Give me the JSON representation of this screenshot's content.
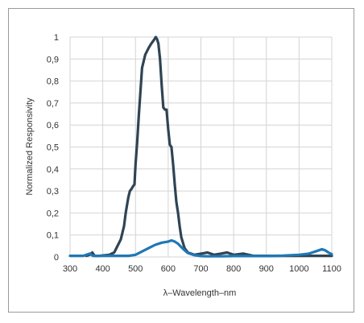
{
  "chart_data": {
    "type": "line",
    "title": "",
    "xlabel": "λ–Wavelength–nm",
    "ylabel": "Normalized Responsivity",
    "xlim": [
      300,
      1100
    ],
    "ylim": [
      0,
      1
    ],
    "x_ticks": [
      "300",
      "400",
      "500",
      "600",
      "700",
      "800",
      "900",
      "1000",
      "1100"
    ],
    "y_ticks": [
      "0",
      "0,1",
      "0,2",
      "0,3",
      "0,4",
      "0,5",
      "0,6",
      "0,7",
      "0,8",
      "0,9",
      "1"
    ],
    "grid": true,
    "legend": "none",
    "colors": {
      "dark_series": "#2f4454",
      "light_series": "#1f78b4",
      "grid": "#d4d4d4",
      "frame": "#9a9a9a"
    },
    "series": [
      {
        "color": "#2f4454",
        "x": [
          350,
          360,
          368,
          375,
          390,
          420,
          435,
          445,
          455,
          465,
          470,
          478,
          483,
          488,
          492,
          497,
          500,
          505,
          510,
          520,
          530,
          540,
          548,
          553,
          558,
          562,
          566,
          570,
          575,
          580,
          585,
          590,
          595,
          600,
          605,
          610,
          615,
          620,
          625,
          630,
          635,
          640,
          650,
          660,
          680,
          700,
          720,
          740,
          760,
          780,
          800,
          830,
          860,
          900,
          950,
          1000,
          1050,
          1100
        ],
        "y": [
          0.005,
          0.01,
          0.02,
          0.005,
          0.005,
          0.01,
          0.02,
          0.05,
          0.08,
          0.14,
          0.2,
          0.27,
          0.3,
          0.31,
          0.32,
          0.33,
          0.42,
          0.52,
          0.64,
          0.86,
          0.92,
          0.95,
          0.97,
          0.98,
          0.99,
          1.0,
          0.99,
          0.97,
          0.9,
          0.78,
          0.68,
          0.67,
          0.67,
          0.58,
          0.51,
          0.5,
          0.42,
          0.33,
          0.25,
          0.2,
          0.14,
          0.09,
          0.04,
          0.02,
          0.01,
          0.015,
          0.02,
          0.01,
          0.015,
          0.02,
          0.01,
          0.015,
          0.005,
          0.005,
          0.005,
          0.005,
          0.005,
          0.005
        ]
      },
      {
        "color": "#1f78b4",
        "x": [
          300,
          340,
          350,
          360,
          370,
          380,
          400,
          420,
          450,
          480,
          500,
          520,
          540,
          560,
          580,
          600,
          610,
          620,
          630,
          640,
          650,
          660,
          680,
          700,
          720,
          760,
          800,
          850,
          900,
          950,
          1000,
          1030,
          1050,
          1060,
          1070,
          1080,
          1090,
          1100
        ],
        "y": [
          0.005,
          0.005,
          0.01,
          0.015,
          0.005,
          0.005,
          0.005,
          0.005,
          0.005,
          0.005,
          0.01,
          0.025,
          0.04,
          0.055,
          0.065,
          0.07,
          0.075,
          0.07,
          0.06,
          0.045,
          0.03,
          0.018,
          0.008,
          0.004,
          0.003,
          0.003,
          0.004,
          0.004,
          0.004,
          0.006,
          0.01,
          0.015,
          0.025,
          0.03,
          0.035,
          0.03,
          0.02,
          0.012
        ]
      }
    ]
  }
}
